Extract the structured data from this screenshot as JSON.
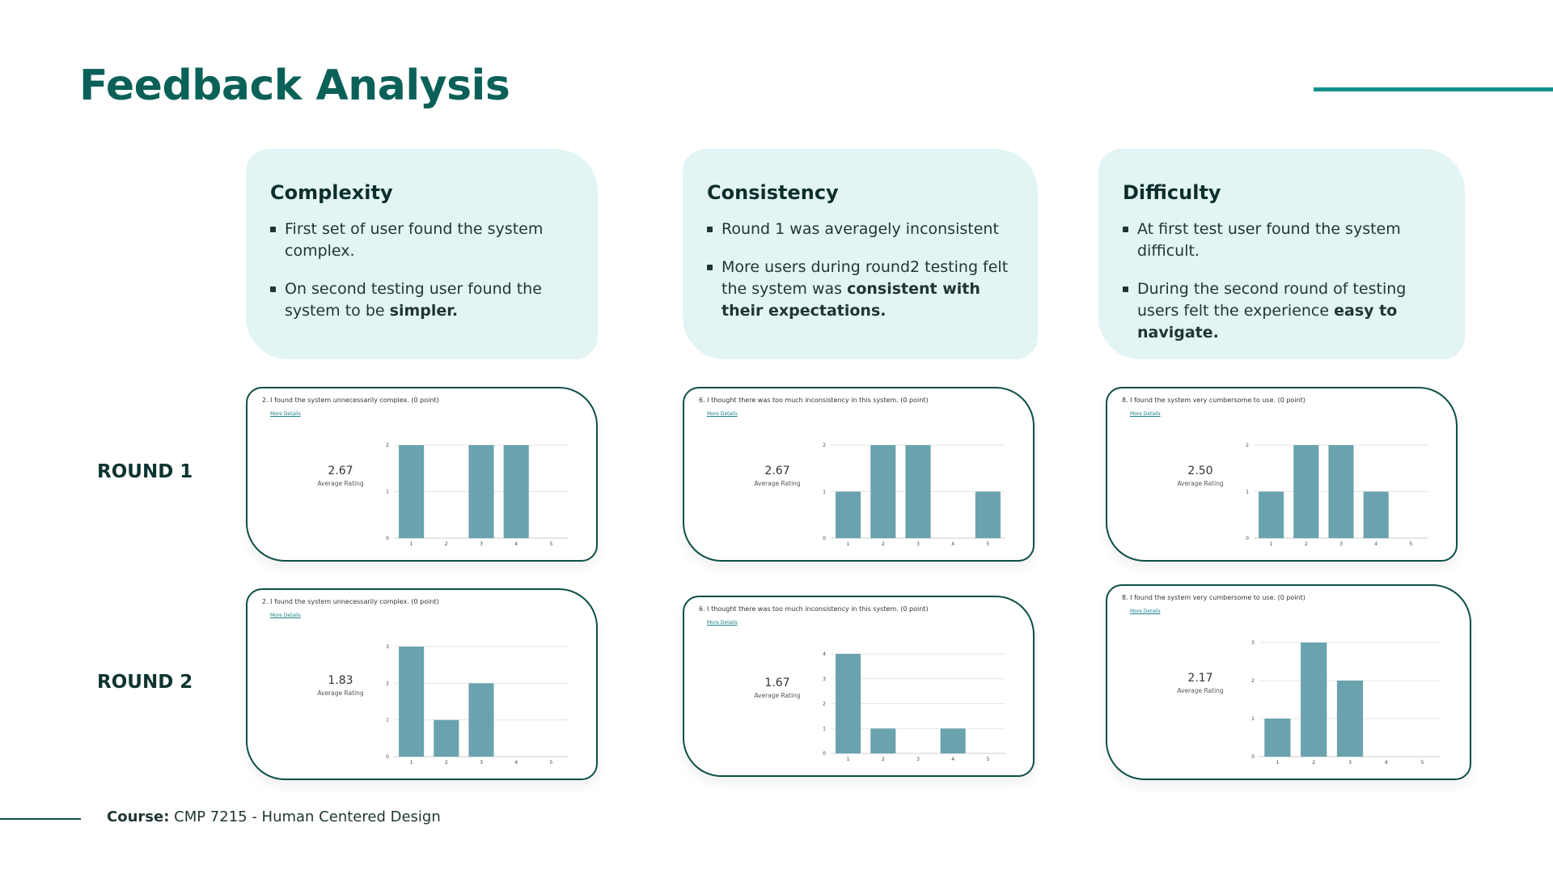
{
  "page": {
    "title": "Feedback Analysis",
    "footer_label": "Course:",
    "footer_text": "CMP 7215 - Human Centered Design"
  },
  "colors": {
    "accent": "#13908a",
    "title": "#0b6157",
    "card_bg": "#e2f4f3",
    "bar": "#6aa3ae",
    "border": "#0e4f47"
  },
  "insights": [
    {
      "heading": "Complexity",
      "bullets": [
        {
          "text": "First set of user found the system complex.",
          "bold": ""
        },
        {
          "text": "On second testing user found the system to be ",
          "bold": "simpler."
        }
      ]
    },
    {
      "heading": "Consistency",
      "bullets": [
        {
          "text": "Round 1 was averagely inconsistent",
          "bold": ""
        },
        {
          "text": "More users during round2 testing felt the system was ",
          "bold": "consistent with their expectations."
        }
      ]
    },
    {
      "heading": "Difficulty",
      "bullets": [
        {
          "text": "At first test user found the system difficult.",
          "bold": ""
        },
        {
          "text": "During the second round of testing users felt the experience ",
          "bold": "easy to navigate."
        }
      ]
    }
  ],
  "rounds": [
    "ROUND 1",
    "ROUND 2"
  ],
  "more_details_label": "More Details",
  "average_label": "Average Rating",
  "chart_data": [
    {
      "type": "bar",
      "round": "ROUND 1",
      "question": "2.  I found the system unnecessarily complex. (0 point)",
      "average": "2.67",
      "categories": [
        "1",
        "2",
        "3",
        "4",
        "5"
      ],
      "values": [
        2,
        0,
        2,
        2,
        0
      ],
      "ylim": [
        0,
        2
      ],
      "yticks": [
        0,
        1,
        2
      ],
      "grid": true
    },
    {
      "type": "bar",
      "round": "ROUND 1",
      "question": "6.  I thought there was too much inconsistency in this system. (0 point)",
      "average": "2.67",
      "categories": [
        "1",
        "2",
        "3",
        "4",
        "5"
      ],
      "values": [
        1,
        2,
        2,
        0,
        1
      ],
      "ylim": [
        0,
        2
      ],
      "yticks": [
        0,
        1,
        2
      ],
      "grid": true
    },
    {
      "type": "bar",
      "round": "ROUND 1",
      "question": "8.  I found the system very cumbersome to use. (0 point)",
      "average": "2.50",
      "categories": [
        "1",
        "2",
        "3",
        "4",
        "5"
      ],
      "values": [
        1,
        2,
        2,
        1,
        0
      ],
      "ylim": [
        0,
        2
      ],
      "yticks": [
        0,
        1,
        2
      ],
      "grid": true
    },
    {
      "type": "bar",
      "round": "ROUND 2",
      "question": "2.  I found the system unnecessarily complex. (0 point)",
      "average": "1.83",
      "categories": [
        "1",
        "2",
        "3",
        "4",
        "5"
      ],
      "values": [
        3,
        1,
        2,
        0,
        0
      ],
      "ylim": [
        0,
        3
      ],
      "yticks": [
        0,
        1,
        2,
        3
      ],
      "grid": true
    },
    {
      "type": "bar",
      "round": "ROUND 2",
      "question": "6.  I thought there was too much inconsistency in this system. (0 point)",
      "average": "1.67",
      "categories": [
        "1",
        "2",
        "3",
        "4",
        "5"
      ],
      "values": [
        4,
        1,
        0,
        1,
        0
      ],
      "ylim": [
        0,
        4
      ],
      "yticks": [
        0,
        1,
        2,
        3,
        4
      ],
      "grid": true
    },
    {
      "type": "bar",
      "round": "ROUND 2",
      "question": "8.  I found the system very cumbersome to use. (0 point)",
      "average": "2.17",
      "categories": [
        "1",
        "2",
        "3",
        "4",
        "5"
      ],
      "values": [
        1,
        3,
        2,
        0,
        0
      ],
      "ylim": [
        0,
        3
      ],
      "yticks": [
        0,
        1,
        2,
        3
      ],
      "grid": true
    }
  ]
}
